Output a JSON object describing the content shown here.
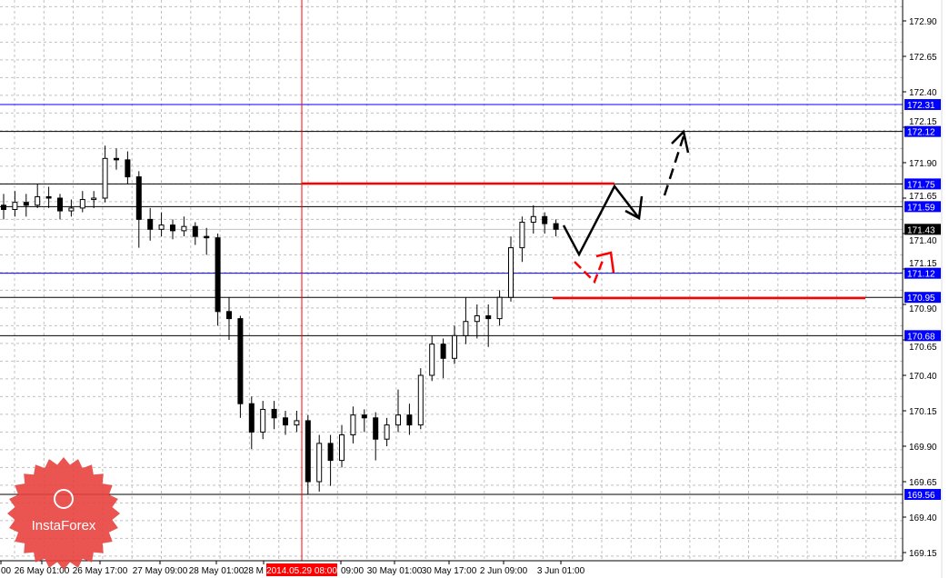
{
  "chart_data": {
    "type": "candlestick",
    "ylim": [
      169.05,
      173.0
    ],
    "grid": true,
    "price_ticks": [
      "172.90",
      "172.65",
      "172.40",
      "172.15",
      "171.90",
      "171.65",
      "171.40",
      "171.15",
      "170.90",
      "170.65",
      "170.40",
      "170.15",
      "169.90",
      "169.65",
      "169.40",
      "169.15"
    ],
    "time_ticks": [
      "00",
      "26 May 01:00",
      "26 May 17:00",
      "27 May 09:00",
      "28 May 01:00",
      "28 M",
      "09:00",
      "30 May 01:00",
      "30 May 17:00",
      "2 Jun 09:00",
      "3 Jun 01:00"
    ],
    "cursor_time_label": "2014.05.29 08:00",
    "current_price": {
      "value": 171.43,
      "label": "171.43"
    },
    "levels": [
      {
        "value": 172.31,
        "label": "172.31",
        "color": "#0000ff"
      },
      {
        "value": 172.12,
        "label": "172.12",
        "color": "#000000"
      },
      {
        "value": 171.75,
        "label": "171.75",
        "color": "#000000"
      },
      {
        "value": 171.59,
        "label": "171.59",
        "color": "#000000"
      },
      {
        "value": 171.12,
        "label": "171.12",
        "color": "#0000ff"
      },
      {
        "value": 170.95,
        "label": "170.95",
        "color": "#000000"
      },
      {
        "value": 170.68,
        "label": "170.68",
        "color": "#000000"
      },
      {
        "value": 169.56,
        "label": "169.56",
        "color": "#000000"
      }
    ],
    "candles_ohlc": [
      [
        171.6,
        171.68,
        171.5,
        171.57
      ],
      [
        171.57,
        171.7,
        171.52,
        171.62
      ],
      [
        171.62,
        171.68,
        171.52,
        171.6
      ],
      [
        171.6,
        171.75,
        171.58,
        171.66
      ],
      [
        171.66,
        171.73,
        171.58,
        171.65
      ],
      [
        171.65,
        171.68,
        171.5,
        171.56
      ],
      [
        171.56,
        171.64,
        171.52,
        171.58
      ],
      [
        171.58,
        171.7,
        171.55,
        171.64
      ],
      [
        171.64,
        171.7,
        171.58,
        171.65
      ],
      [
        171.65,
        172.02,
        171.62,
        171.93
      ],
      [
        171.93,
        172.0,
        171.85,
        171.92
      ],
      [
        171.92,
        171.98,
        171.75,
        171.8
      ],
      [
        171.8,
        171.84,
        171.3,
        171.5
      ],
      [
        171.5,
        171.58,
        171.35,
        171.43
      ],
      [
        171.43,
        171.55,
        171.38,
        171.46
      ],
      [
        171.46,
        171.5,
        171.36,
        171.42
      ],
      [
        171.42,
        171.52,
        171.38,
        171.45
      ],
      [
        171.45,
        171.48,
        171.32,
        171.38
      ],
      [
        171.38,
        171.44,
        171.25,
        171.37
      ],
      [
        171.37,
        171.4,
        170.75,
        170.85
      ],
      [
        170.85,
        170.95,
        170.65,
        170.8
      ],
      [
        170.8,
        170.82,
        170.1,
        170.2
      ],
      [
        170.2,
        170.25,
        169.88,
        170.0
      ],
      [
        170.0,
        170.22,
        169.95,
        170.16
      ],
      [
        170.16,
        170.22,
        170.02,
        170.1
      ],
      [
        170.1,
        170.15,
        169.98,
        170.05
      ],
      [
        170.05,
        170.15,
        170.0,
        170.08
      ],
      [
        170.08,
        170.12,
        169.56,
        169.65
      ],
      [
        169.65,
        169.98,
        169.58,
        169.92
      ],
      [
        169.92,
        169.98,
        169.62,
        169.8
      ],
      [
        169.8,
        170.05,
        169.75,
        169.98
      ],
      [
        169.98,
        170.18,
        169.92,
        170.12
      ],
      [
        170.12,
        170.16,
        170.0,
        170.1
      ],
      [
        170.1,
        170.14,
        169.8,
        169.95
      ],
      [
        169.95,
        170.1,
        169.9,
        170.05
      ],
      [
        170.05,
        170.3,
        170.0,
        170.12
      ],
      [
        170.12,
        170.2,
        169.98,
        170.05
      ],
      [
        170.05,
        170.45,
        170.02,
        170.4
      ],
      [
        170.4,
        170.68,
        170.36,
        170.62
      ],
      [
        170.62,
        170.66,
        170.38,
        170.52
      ],
      [
        170.52,
        170.75,
        170.48,
        170.68
      ],
      [
        170.68,
        170.95,
        170.62,
        170.78
      ],
      [
        170.78,
        170.9,
        170.66,
        170.82
      ],
      [
        170.82,
        170.9,
        170.6,
        170.8
      ],
      [
        170.8,
        171.0,
        170.75,
        170.95
      ],
      [
        170.95,
        171.38,
        170.92,
        171.3
      ],
      [
        171.3,
        171.52,
        171.2,
        171.48
      ],
      [
        171.48,
        171.6,
        171.4,
        171.52
      ],
      [
        171.52,
        171.55,
        171.4,
        171.47
      ],
      [
        171.47,
        171.5,
        171.38,
        171.43
      ]
    ]
  },
  "logo": {
    "text": "InstaForex",
    "color": "#e8413e"
  }
}
